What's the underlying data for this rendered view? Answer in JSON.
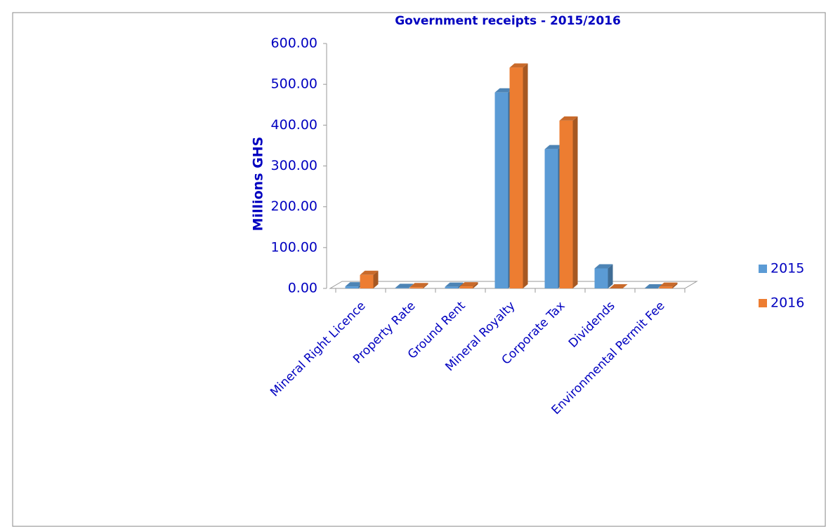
{
  "chart_data": {
    "type": "bar",
    "title": "Government receipts - 2015/2016",
    "y_label": "Millions GHS",
    "categories": [
      "Mineral Right Licence",
      "Property Rate",
      "Ground Rent",
      "Mineral Royalty",
      "Corporate Tax",
      "Dividends",
      "Environmental Permit Fee"
    ],
    "series": [
      {
        "name": "2015",
        "color": "#5b9bd5",
        "values": [
          5,
          1,
          4,
          480,
          341,
          49,
          0
        ]
      },
      {
        "name": "2016",
        "color": "#ed7d31",
        "values": [
          33,
          3,
          5,
          541,
          411,
          0,
          4
        ]
      }
    ],
    "ylim": [
      0,
      600
    ],
    "yticks": [
      {
        "value": 0,
        "label": "0.00"
      },
      {
        "value": 100,
        "label": "100.00"
      },
      {
        "value": 200,
        "label": "200.00"
      },
      {
        "value": 300,
        "label": "300.00"
      },
      {
        "value": 400,
        "label": "400.00"
      },
      {
        "value": 500,
        "label": "500.00"
      },
      {
        "value": 600,
        "label": "600.00"
      }
    ],
    "legend": "right"
  }
}
